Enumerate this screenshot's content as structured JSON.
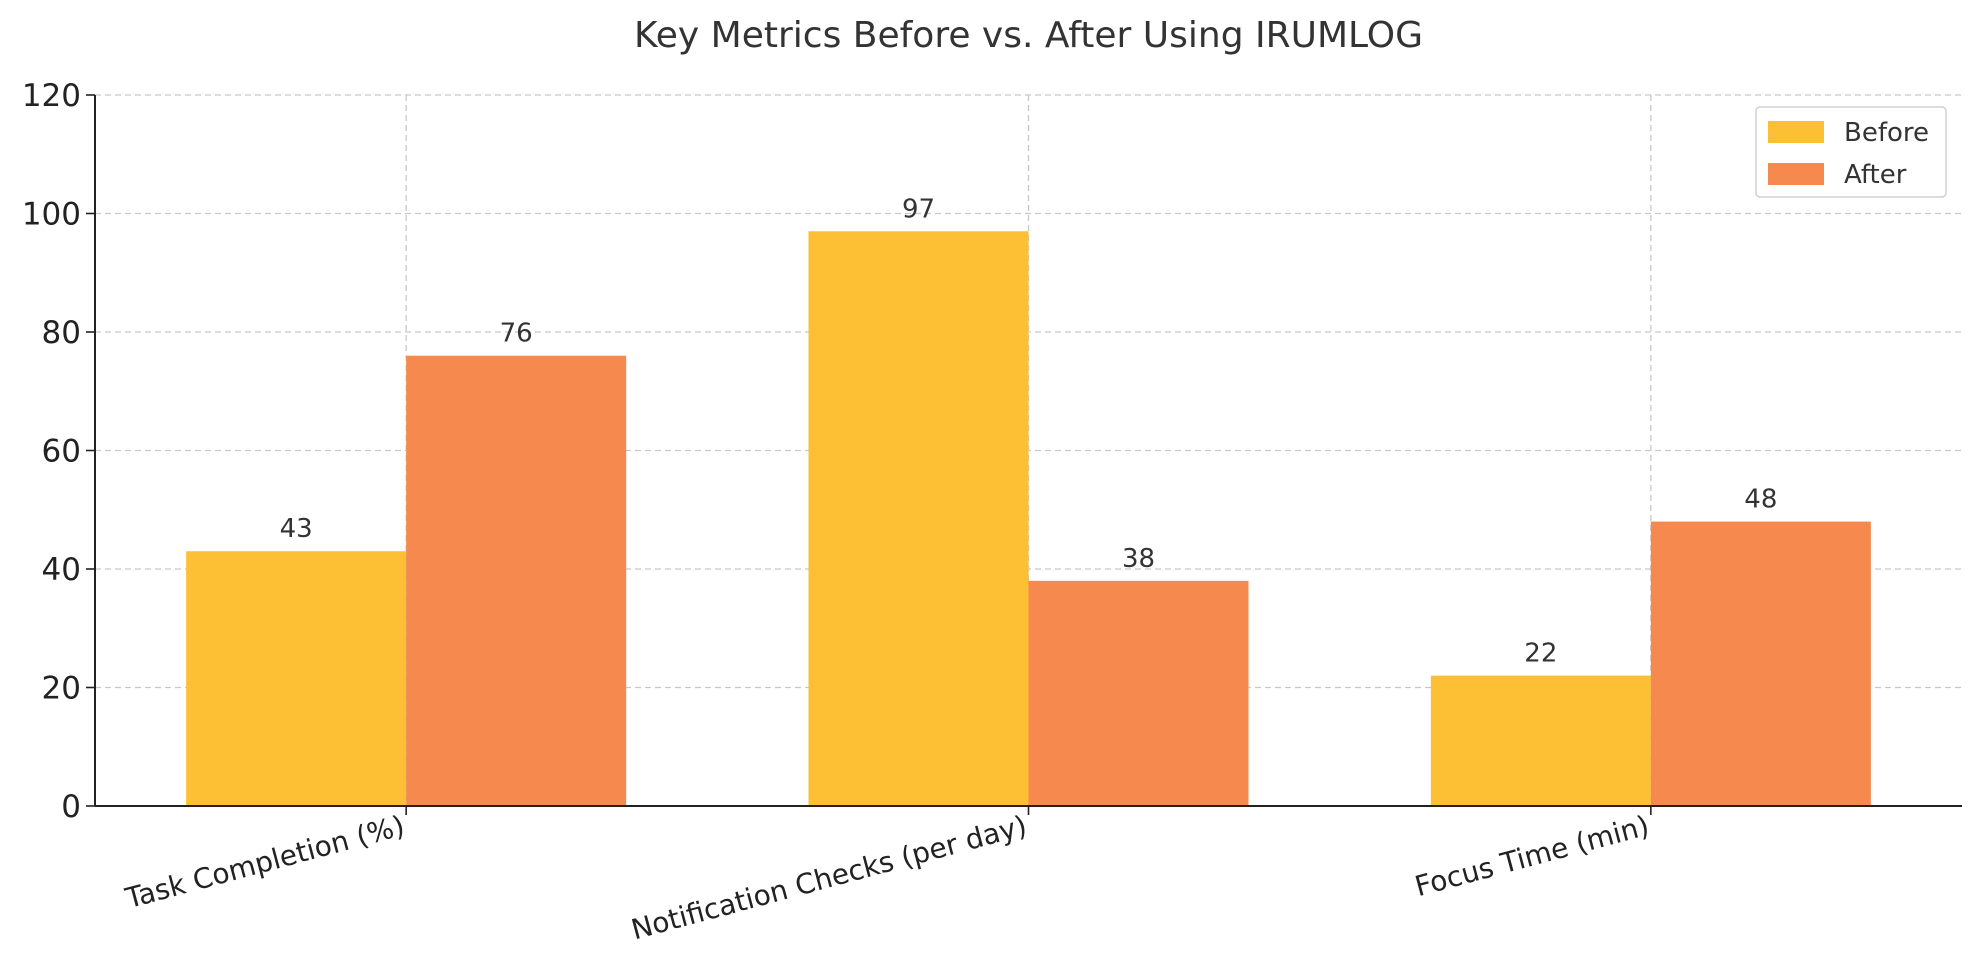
{
  "chart_data": {
    "type": "bar",
    "title": "Key Metrics Before vs. After Using IRUMLOG",
    "categories": [
      "Task Completion (%)",
      "Notification Checks (per day)",
      "Focus Time (min)"
    ],
    "series": [
      {
        "name": "Before",
        "values": [
          43,
          97,
          22
        ],
        "color": "#fdbf33"
      },
      {
        "name": "After",
        "values": [
          76,
          38,
          48
        ],
        "color": "#f5894e"
      }
    ],
    "xlabel": "",
    "ylabel": "",
    "ylim": [
      0,
      120
    ],
    "yticks": [
      0,
      20,
      40,
      60,
      80,
      100,
      120
    ],
    "grid": true,
    "legend_position": "top-right"
  }
}
